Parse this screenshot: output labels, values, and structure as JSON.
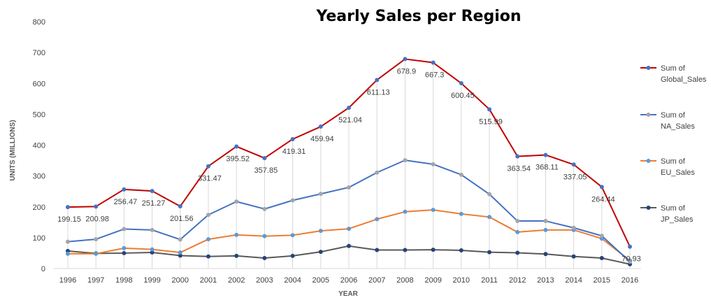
{
  "chart_data": {
    "type": "line",
    "title": "Yearly Sales per Region",
    "xlabel": "YEAR",
    "ylabel": "UNITS (MILLIONS)",
    "ylim": [
      0,
      800
    ],
    "yticks": [
      0,
      100,
      200,
      300,
      400,
      500,
      600,
      700,
      800
    ],
    "grid": "vertical",
    "legend_position": "right",
    "categories": [
      "1996",
      "1997",
      "1998",
      "1999",
      "2000",
      "2001",
      "2002",
      "2003",
      "2004",
      "2005",
      "2006",
      "2007",
      "2008",
      "2009",
      "2010",
      "2011",
      "2012",
      "2013",
      "2014",
      "2015",
      "2016"
    ],
    "series": [
      {
        "name": "Sum of Global_Sales",
        "color": "#c00000",
        "values": [
          199.15,
          200.98,
          256.47,
          251.27,
          201.56,
          331.47,
          395.52,
          357.85,
          419.31,
          459.94,
          521.04,
          611.13,
          678.9,
          667.3,
          600.45,
          515.99,
          363.54,
          368.11,
          337.05,
          264.44,
          70.93
        ],
        "labels": [
          "199.15",
          "200.98",
          "256.47",
          "251.27",
          "201.56",
          "331.47",
          "395.52",
          "357.85",
          "419.31",
          "459.94",
          "521.04",
          "611.13",
          "678.9",
          "667.3",
          "600.45",
          "515.99",
          "363.54",
          "368.11",
          "337.05",
          "264.44",
          "70.93"
        ]
      },
      {
        "name": "Sum of NA_Sales",
        "color": "#4472c4",
        "values": [
          87,
          95,
          128,
          125,
          94,
          174,
          217,
          193,
          221,
          242,
          263,
          311,
          351,
          338,
          304,
          241,
          154,
          154,
          132,
          106,
          22
        ]
      },
      {
        "name": "Sum of EU_Sales",
        "color": "#ed7d31",
        "values": [
          48,
          48,
          66,
          62,
          52,
          95,
          109,
          105,
          108,
          122,
          129,
          160,
          184,
          190,
          177,
          167,
          118,
          125,
          125,
          97,
          26
        ]
      },
      {
        "name": "Sum of JP_Sales",
        "color": "#595959",
        "values": [
          57,
          49,
          50,
          52,
          42,
          39,
          41,
          34,
          41,
          54,
          73,
          60,
          60,
          61,
          59,
          53,
          51,
          47,
          39,
          34,
          14
        ]
      }
    ]
  },
  "legend": {
    "items": [
      {
        "line1": "Sum of",
        "line2": "Global_Sales",
        "color": "#c00000",
        "marker": "#4472c4"
      },
      {
        "line1": "Sum of",
        "line2": "NA_Sales",
        "color": "#4472c4",
        "marker": "#a5a5a5"
      },
      {
        "line1": "Sum of",
        "line2": "EU_Sales",
        "color": "#ed7d31",
        "marker": "#5b9bd5"
      },
      {
        "line1": "Sum of",
        "line2": "JP_Sales",
        "color": "#595959",
        "marker": "#264478"
      }
    ]
  },
  "markers": {
    "Sum of Global_Sales": "#4472c4",
    "Sum of NA_Sales": "#a5a5a5",
    "Sum of EU_Sales": "#5b9bd5",
    "Sum of JP_Sales": "#264478"
  }
}
